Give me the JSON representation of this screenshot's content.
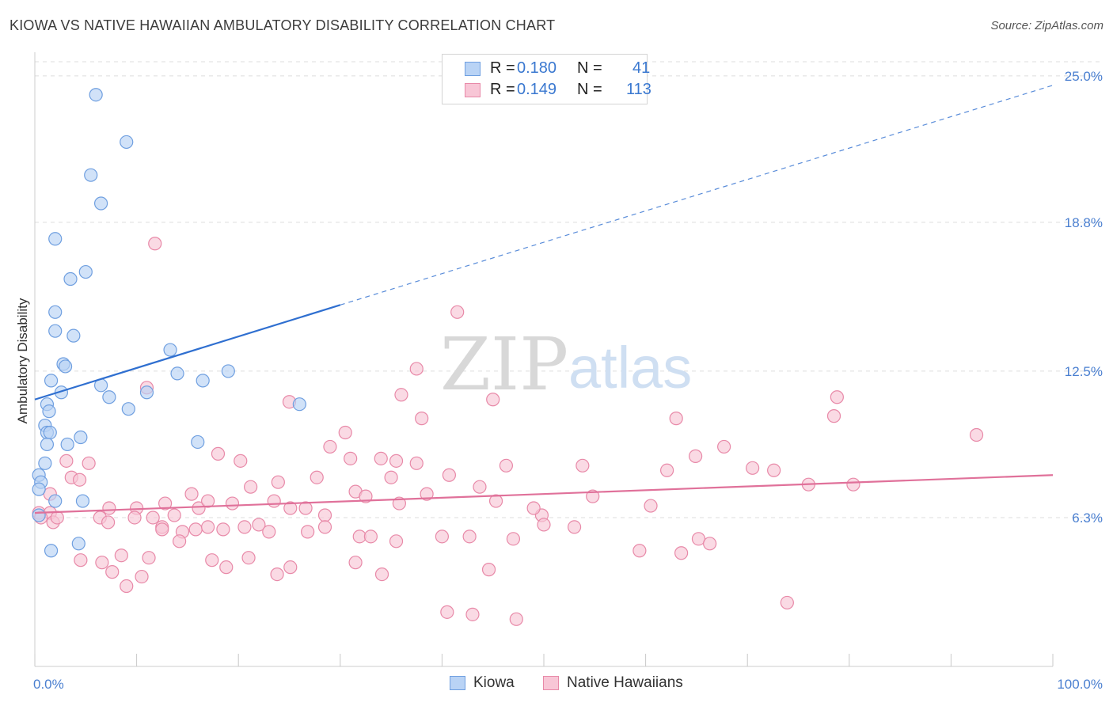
{
  "header": {
    "title": "KIOWA VS NATIVE HAWAIIAN AMBULATORY DISABILITY CORRELATION CHART",
    "source": "Source: ZipAtlas.com"
  },
  "colors": {
    "kiowa_fill": "#b9d3f5",
    "kiowa_stroke": "#6f9fe0",
    "kiowa_line": "#2f6fd0",
    "hawaiian_fill": "#f8c6d6",
    "hawaiian_stroke": "#e889a8",
    "hawaiian_line": "#e0719a",
    "tick_text": "#4a7fd0",
    "grid": "#dddddd"
  },
  "watermark": {
    "zip": "ZIP",
    "atlas": "atlas"
  },
  "legend": {
    "rows": [
      {
        "r_label": "R =",
        "r_value": "0.180",
        "n_label": "N =",
        "n_value": "41"
      },
      {
        "r_label": "R =",
        "r_value": "0.149",
        "n_label": "N =",
        "n_value": "113"
      }
    ]
  },
  "bottom_legend": {
    "kiowa": "Kiowa",
    "hawaiian": "Native Hawaiians"
  },
  "chart_data": {
    "type": "scatter",
    "title": "KIOWA VS NATIVE HAWAIIAN AMBULATORY DISABILITY CORRELATION CHART",
    "xlabel": "",
    "ylabel": "Ambulatory Disability",
    "xlim": [
      0,
      100
    ],
    "ylim": [
      0,
      26
    ],
    "x_tick_labels": [
      "0.0%",
      "100.0%"
    ],
    "y_ticks": [
      6.3,
      12.5,
      18.8,
      25.0
    ],
    "y_tick_labels": [
      "6.3%",
      "12.5%",
      "18.8%",
      "25.0%"
    ],
    "series": [
      {
        "name": "Kiowa",
        "R": 0.18,
        "N": 41,
        "trend": {
          "x0": 0,
          "y0": 11.3,
          "x1": 30,
          "y1": 15.3,
          "extend_to_x": 100,
          "extend_to_y": 24.6
        },
        "points": [
          [
            6,
            24.2
          ],
          [
            9,
            22.2
          ],
          [
            5.5,
            20.8
          ],
          [
            6.5,
            19.6
          ],
          [
            2,
            18.1
          ],
          [
            5,
            16.7
          ],
          [
            3.5,
            16.4
          ],
          [
            2,
            15.0
          ],
          [
            2,
            14.2
          ],
          [
            3.8,
            14.0
          ],
          [
            13.3,
            13.4
          ],
          [
            2.8,
            12.8
          ],
          [
            3,
            12.7
          ],
          [
            19,
            12.5
          ],
          [
            14,
            12.4
          ],
          [
            1.6,
            12.1
          ],
          [
            16.5,
            12.1
          ],
          [
            6.5,
            11.9
          ],
          [
            2.6,
            11.6
          ],
          [
            11,
            11.6
          ],
          [
            7.3,
            11.4
          ],
          [
            1.2,
            11.1
          ],
          [
            26,
            11.1
          ],
          [
            1.4,
            10.8
          ],
          [
            9.2,
            10.9
          ],
          [
            1,
            10.2
          ],
          [
            1.2,
            9.9
          ],
          [
            1.5,
            9.9
          ],
          [
            4.5,
            9.7
          ],
          [
            3.2,
            9.4
          ],
          [
            1.2,
            9.4
          ],
          [
            16,
            9.5
          ],
          [
            1,
            8.6
          ],
          [
            0.4,
            8.1
          ],
          [
            0.6,
            7.8
          ],
          [
            0.4,
            7.5
          ],
          [
            2,
            7.0
          ],
          [
            4.7,
            7.0
          ],
          [
            0.4,
            6.4
          ],
          [
            4.3,
            5.2
          ],
          [
            1.6,
            4.9
          ]
        ]
      },
      {
        "name": "Native Hawaiians",
        "R": 0.149,
        "N": 113,
        "trend": {
          "x0": 0,
          "y0": 6.5,
          "x1": 100,
          "y1": 8.1
        },
        "points": [
          [
            11.8,
            17.9
          ],
          [
            41.5,
            15.0
          ],
          [
            25,
            11.2
          ],
          [
            37.5,
            12.6
          ],
          [
            11,
            11.8
          ],
          [
            38,
            10.5
          ],
          [
            36,
            11.5
          ],
          [
            45,
            11.3
          ],
          [
            63,
            10.5
          ],
          [
            78.8,
            11.4
          ],
          [
            78.5,
            10.6
          ],
          [
            92.5,
            9.8
          ],
          [
            18,
            9.0
          ],
          [
            30.5,
            9.9
          ],
          [
            29,
            9.3
          ],
          [
            31,
            8.8
          ],
          [
            34,
            8.8
          ],
          [
            37.5,
            8.6
          ],
          [
            35.5,
            8.7
          ],
          [
            46.3,
            8.5
          ],
          [
            53.8,
            8.5
          ],
          [
            62.1,
            8.3
          ],
          [
            64.9,
            8.9
          ],
          [
            67.7,
            9.3
          ],
          [
            70.5,
            8.4
          ],
          [
            72.6,
            8.3
          ],
          [
            76,
            7.7
          ],
          [
            80.4,
            7.7
          ],
          [
            27.7,
            8.0
          ],
          [
            35,
            8.0
          ],
          [
            31.5,
            7.4
          ],
          [
            40.7,
            8.1
          ],
          [
            20.2,
            8.7
          ],
          [
            23.9,
            7.8
          ],
          [
            3.1,
            8.7
          ],
          [
            5.3,
            8.6
          ],
          [
            1.5,
            7.3
          ],
          [
            3.6,
            8.0
          ],
          [
            4.4,
            7.9
          ],
          [
            7.3,
            6.7
          ],
          [
            10,
            6.7
          ],
          [
            12.8,
            6.9
          ],
          [
            15.4,
            7.3
          ],
          [
            16.1,
            6.7
          ],
          [
            17,
            7.0
          ],
          [
            19.4,
            6.9
          ],
          [
            21.2,
            7.6
          ],
          [
            23.5,
            7.0
          ],
          [
            25.1,
            6.7
          ],
          [
            26.6,
            6.7
          ],
          [
            28.5,
            6.4
          ],
          [
            32.5,
            7.2
          ],
          [
            35.8,
            6.9
          ],
          [
            38.5,
            7.3
          ],
          [
            43.7,
            7.6
          ],
          [
            45.3,
            7.0
          ],
          [
            49.8,
            6.4
          ],
          [
            49,
            6.7
          ],
          [
            54.8,
            7.2
          ],
          [
            60.5,
            6.8
          ],
          [
            0.4,
            6.5
          ],
          [
            1.5,
            6.5
          ],
          [
            1.8,
            6.1
          ],
          [
            2.2,
            6.3
          ],
          [
            6.4,
            6.3
          ],
          [
            7.2,
            6.1
          ],
          [
            9.8,
            6.3
          ],
          [
            11.6,
            6.3
          ],
          [
            12.5,
            5.9
          ],
          [
            13.7,
            6.4
          ],
          [
            14.5,
            5.7
          ],
          [
            15.8,
            5.8
          ],
          [
            17,
            5.9
          ],
          [
            18.5,
            5.8
          ],
          [
            20.6,
            5.9
          ],
          [
            22,
            6.0
          ],
          [
            23,
            5.7
          ],
          [
            26.8,
            5.7
          ],
          [
            28.5,
            5.9
          ],
          [
            31.9,
            5.5
          ],
          [
            33,
            5.5
          ],
          [
            35.5,
            5.3
          ],
          [
            40,
            5.5
          ],
          [
            42.7,
            5.5
          ],
          [
            47,
            5.4
          ],
          [
            50,
            6.0
          ],
          [
            53,
            5.9
          ],
          [
            59.4,
            4.9
          ],
          [
            63.5,
            4.8
          ],
          [
            65.2,
            5.4
          ],
          [
            66.3,
            5.2
          ],
          [
            0.6,
            6.3
          ],
          [
            4.5,
            4.5
          ],
          [
            6.6,
            4.4
          ],
          [
            7.6,
            4.0
          ],
          [
            8.5,
            4.7
          ],
          [
            9,
            3.4
          ],
          [
            10.5,
            3.8
          ],
          [
            11.2,
            4.6
          ],
          [
            12.5,
            5.8
          ],
          [
            14.2,
            5.3
          ],
          [
            17.4,
            4.5
          ],
          [
            18.8,
            4.2
          ],
          [
            21,
            4.6
          ],
          [
            23.8,
            3.9
          ],
          [
            25.1,
            4.2
          ],
          [
            31.5,
            4.4
          ],
          [
            34.1,
            3.9
          ],
          [
            40.5,
            2.3
          ],
          [
            43,
            2.2
          ],
          [
            44.6,
            4.1
          ],
          [
            47.3,
            2.0
          ],
          [
            73.9,
            2.7
          ]
        ]
      }
    ]
  }
}
